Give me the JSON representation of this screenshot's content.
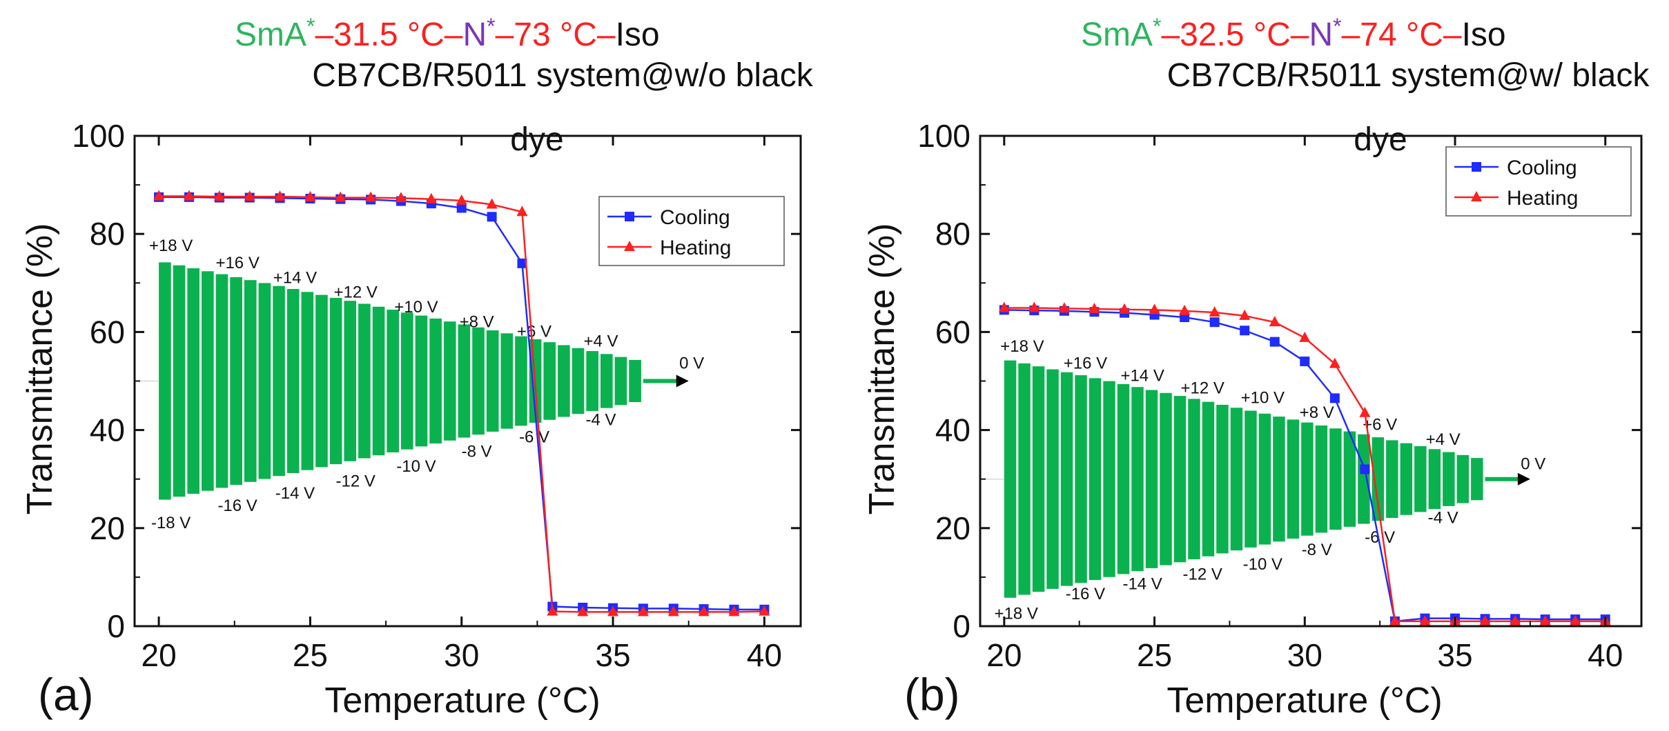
{
  "chart_data": [
    {
      "type": "line",
      "panel_label": "(a)",
      "phase": {
        "smA": "SmA",
        "star": "*",
        "t1": "–31.5 °C–",
        "n": "N",
        "t2": "–73 °C–",
        "iso": "Iso"
      },
      "title_line1": "CB7CB/R5011 system@w/o black",
      "title_line2": "dye",
      "xlabel": "Temperature (°C)",
      "ylabel": "Transmittance (%)",
      "xlim": [
        19.2,
        41.2
      ],
      "ylim": [
        0,
        100
      ],
      "xticks": [
        20,
        25,
        30,
        35,
        40
      ],
      "yticks": [
        0,
        20,
        40,
        60,
        80,
        100
      ],
      "legend": {
        "position": "top-right",
        "entries": [
          "Cooling",
          "Heating"
        ]
      },
      "series": [
        {
          "name": "Cooling",
          "color": "#1f2bff",
          "marker": "square",
          "x": [
            20,
            21,
            22,
            23,
            24,
            25,
            26,
            27,
            28,
            29,
            30,
            31,
            32,
            33,
            34,
            35,
            36,
            37,
            38,
            39,
            40
          ],
          "y": [
            87.5,
            87.5,
            87.4,
            87.4,
            87.3,
            87.2,
            87.1,
            87,
            86.7,
            86.2,
            85.3,
            83.5,
            74,
            4,
            3.8,
            3.7,
            3.6,
            3.6,
            3.5,
            3.4,
            3.4
          ]
        },
        {
          "name": "Heating",
          "color": "#ff1f1f",
          "marker": "triangle",
          "x": [
            20,
            21,
            22,
            23,
            24,
            25,
            26,
            27,
            28,
            29,
            30,
            31,
            32,
            33,
            34,
            35,
            36,
            37,
            38,
            39,
            40
          ],
          "y": [
            87.7,
            87.7,
            87.6,
            87.6,
            87.6,
            87.5,
            87.4,
            87.4,
            87.3,
            87.1,
            86.8,
            86,
            84.5,
            3,
            2.9,
            2.9,
            2.9,
            2.9,
            2.9,
            2.9,
            3
          ]
        }
      ],
      "envelope": {
        "x_start": 20,
        "x_end": 36,
        "x_arrow": 37.5,
        "center": 50,
        "amp_start": 24.5,
        "amp_end": 4,
        "color": "#0ab24f"
      },
      "voltage_labels": [
        {
          "text": "+18 V",
          "x": 20.4,
          "y": 76.5
        },
        {
          "text": "+16 V",
          "x": 22.6,
          "y": 73
        },
        {
          "text": "+14 V",
          "x": 24.5,
          "y": 70
        },
        {
          "text": "+12 V",
          "x": 26.5,
          "y": 67
        },
        {
          "text": "+10 V",
          "x": 28.5,
          "y": 64
        },
        {
          "text": "+8 V",
          "x": 30.5,
          "y": 61
        },
        {
          "text": "+6 V",
          "x": 32.4,
          "y": 59
        },
        {
          "text": "+4 V",
          "x": 34.6,
          "y": 57
        },
        {
          "text": "0 V",
          "x": 37.6,
          "y": 52.5
        },
        {
          "text": "-4 V",
          "x": 34.6,
          "y": 41
        },
        {
          "text": "-6 V",
          "x": 32.4,
          "y": 37.5
        },
        {
          "text": "-8 V",
          "x": 30.5,
          "y": 34.5
        },
        {
          "text": "-10 V",
          "x": 28.5,
          "y": 31.5
        },
        {
          "text": "-12 V",
          "x": 26.5,
          "y": 28.5
        },
        {
          "text": "-14 V",
          "x": 24.5,
          "y": 26
        },
        {
          "text": "-16 V",
          "x": 22.6,
          "y": 23.5
        },
        {
          "text": "-18 V",
          "x": 20.4,
          "y": 20
        }
      ]
    },
    {
      "type": "line",
      "panel_label": "(b)",
      "phase": {
        "smA": "SmA",
        "star": "*",
        "t1": "–32.5 °C–",
        "n": "N",
        "t2": "–74 °C–",
        "iso": "Iso"
      },
      "title_line1": "CB7CB/R5011 system@w/ black",
      "title_line2": "dye",
      "xlabel": "Temperature (°C)",
      "ylabel": "Transmittance (%)",
      "xlim": [
        19.2,
        41.2
      ],
      "ylim": [
        0,
        100
      ],
      "xticks": [
        20,
        25,
        30,
        35,
        40
      ],
      "yticks": [
        0,
        20,
        40,
        60,
        80,
        100
      ],
      "legend": {
        "position": "top-right",
        "entries": [
          "Cooling",
          "Heating"
        ]
      },
      "series": [
        {
          "name": "Cooling",
          "color": "#1f2bff",
          "marker": "square",
          "x": [
            20,
            21,
            22,
            23,
            24,
            25,
            26,
            27,
            28,
            29,
            30,
            31,
            32,
            33,
            34,
            35,
            36,
            37,
            38,
            39,
            40
          ],
          "y": [
            64.5,
            64.4,
            64.3,
            64.1,
            63.9,
            63.5,
            63,
            62,
            60.3,
            58,
            54,
            46.5,
            32,
            1,
            1.6,
            1.6,
            1.5,
            1.5,
            1.4,
            1.4,
            1.4
          ]
        },
        {
          "name": "Heating",
          "color": "#ff1f1f",
          "marker": "triangle",
          "x": [
            20,
            21,
            22,
            23,
            24,
            25,
            26,
            27,
            28,
            29,
            30,
            31,
            32,
            33,
            34,
            35,
            36,
            37,
            38,
            39,
            40
          ],
          "y": [
            64.9,
            64.9,
            64.8,
            64.7,
            64.6,
            64.5,
            64.3,
            64,
            63.3,
            62,
            58.8,
            53.5,
            43.5,
            1,
            1,
            1,
            1,
            1,
            1,
            1,
            1
          ]
        }
      ],
      "envelope": {
        "x_start": 20,
        "x_end": 36,
        "x_arrow": 37.5,
        "center": 30,
        "amp_start": 24.5,
        "amp_end": 4,
        "color": "#0ab24f"
      },
      "voltage_labels": [
        {
          "text": "+18 V",
          "x": 20.6,
          "y": 56
        },
        {
          "text": "+16 V",
          "x": 22.7,
          "y": 52.5
        },
        {
          "text": "+14 V",
          "x": 24.6,
          "y": 50
        },
        {
          "text": "+12 V",
          "x": 26.6,
          "y": 47.5
        },
        {
          "text": "+10 V",
          "x": 28.6,
          "y": 45.5
        },
        {
          "text": "+8 V",
          "x": 30.4,
          "y": 42.5
        },
        {
          "text": "+6 V",
          "x": 32.5,
          "y": 40
        },
        {
          "text": "+4 V",
          "x": 34.6,
          "y": 37
        },
        {
          "text": "0 V",
          "x": 37.6,
          "y": 32
        },
        {
          "text": "-4 V",
          "x": 34.6,
          "y": 21
        },
        {
          "text": "-6 V",
          "x": 32.5,
          "y": 17
        },
        {
          "text": "-8 V",
          "x": 30.4,
          "y": 14.5
        },
        {
          "text": "-10 V",
          "x": 28.6,
          "y": 11.5
        },
        {
          "text": "-12 V",
          "x": 26.6,
          "y": 9.5
        },
        {
          "text": "-14 V",
          "x": 24.6,
          "y": 7.5
        },
        {
          "text": "-16 V",
          "x": 22.7,
          "y": 5.5
        },
        {
          "text": "+18 V",
          "x": 20.4,
          "y": 1.5
        }
      ]
    }
  ]
}
